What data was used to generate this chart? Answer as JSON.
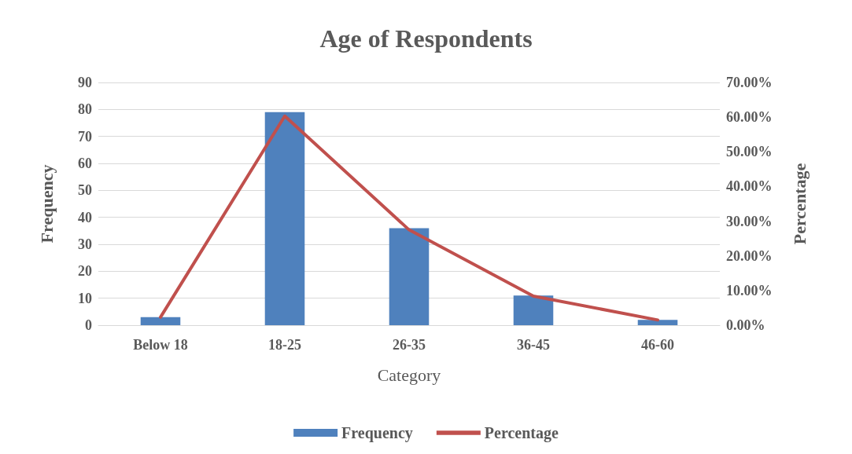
{
  "chart_data": {
    "type": "bar",
    "title": "Age of Respondents",
    "xlabel": "Category",
    "ylabel": "Frequency",
    "y2label": "Percentage",
    "categories": [
      "Below 18",
      "18-25",
      "26-35",
      "36-45",
      "46-60"
    ],
    "series": [
      {
        "name": "Frequency",
        "color": "#4f81bd",
        "values": [
          3,
          79,
          36,
          11,
          2
        ]
      },
      {
        "name": "Percentage",
        "type": "line",
        "axis": "y2",
        "color": "#c0504d",
        "values": [
          2.3,
          60.3,
          27.5,
          8.4,
          1.5
        ]
      }
    ],
    "ylim": [
      0,
      90
    ],
    "yticks": [
      0,
      10,
      20,
      30,
      40,
      50,
      60,
      70,
      80,
      90
    ],
    "y2lim": [
      0,
      70
    ],
    "y2ticks": [
      {
        "value": 0,
        "label": "0.00%"
      },
      {
        "value": 10,
        "label": "10.00%"
      },
      {
        "value": 20,
        "label": "20.00%"
      },
      {
        "value": 30,
        "label": "30.00%"
      },
      {
        "value": 40,
        "label": "40.00%"
      },
      {
        "value": 50,
        "label": "50.00%"
      },
      {
        "value": 60,
        "label": "60.00%"
      },
      {
        "value": 70,
        "label": "70.00%"
      }
    ],
    "grid": "y",
    "legend": "bottom",
    "marker": "none",
    "line_style": "solid"
  }
}
